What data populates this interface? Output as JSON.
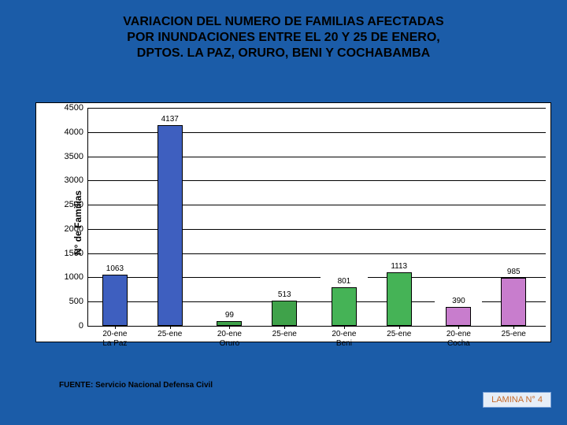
{
  "title_line1": "VARIACION DEL NUMERO DE FAMILIAS AFECTADAS",
  "title_line2": "POR INUNDACIONES ENTRE EL 20 Y 25 DE ENERO,",
  "title_line3": "DPTOS. LA PAZ, ORURO, BENI Y COCHABAMBA",
  "ylabel": "N° de Familias",
  "source": "FUENTE: Servicio Nacional Defensa Civil",
  "lamina": "LAMINA N° 4",
  "chart": {
    "type": "bar",
    "ylim": [
      0,
      4500
    ],
    "ytick_step": 500,
    "yticks": [
      0,
      500,
      1000,
      1500,
      2000,
      2500,
      3000,
      3500,
      4000,
      4500
    ],
    "background_color": "#ffffff",
    "grid_color": "#000000",
    "bar_width_pct": 5.5,
    "pairs": [
      {
        "group": "La Paz",
        "cat20": "20-ene",
        "cat25": "25-ene",
        "v20": 1063,
        "v25": 4137,
        "color": "#3e5fbf"
      },
      {
        "group": "Oruro",
        "cat20": "20-ene",
        "cat25": "25-ene",
        "v20": 99,
        "v25": 513,
        "color": "#3fa24a"
      },
      {
        "group": "Beni",
        "cat20": "20-ene",
        "cat25": "25-ene",
        "v20": 801,
        "v25": 1113,
        "color": "#45b356"
      },
      {
        "group": "Cocha",
        "cat20": "20-ene",
        "cat25": "25-ene",
        "v20": 390,
        "v25": 985,
        "color": "#c87dcd"
      }
    ],
    "bar_positions_pct": [
      6,
      18,
      31,
      43,
      56,
      68,
      81,
      93
    ]
  }
}
